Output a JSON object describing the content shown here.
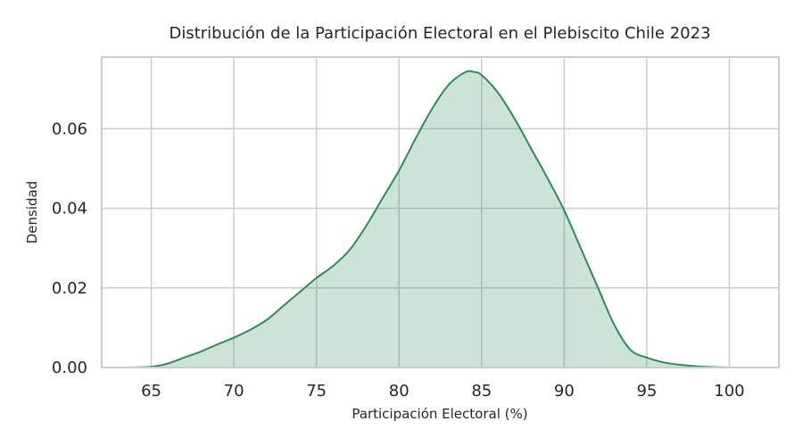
{
  "chart_data": {
    "type": "area",
    "title": "Distribución de la Participación Electoral en el Plebiscito Chile 2023",
    "xlabel": "Participación Electoral (%)",
    "ylabel": "Densidad",
    "xlim": [
      62,
      103
    ],
    "ylim": [
      0,
      0.078
    ],
    "xticks": [
      65,
      70,
      75,
      80,
      85,
      90,
      95,
      100
    ],
    "yticks": [
      0.0,
      0.02,
      0.04,
      0.06
    ],
    "ytick_labels": [
      "0.00",
      "0.02",
      "0.04",
      "0.06"
    ],
    "grid": true,
    "line_color": "#2e8b57",
    "fill_color": "#2e8b57",
    "fill_opacity": 0.24,
    "series": [
      {
        "x": [
          63.5,
          65,
          66,
          67,
          68,
          69,
          70,
          71,
          72,
          73,
          74,
          75,
          76,
          77,
          78,
          79,
          80,
          81,
          82,
          83,
          84,
          84.5,
          85,
          86,
          87,
          88,
          89,
          90,
          91,
          92,
          93,
          94,
          95,
          96,
          97,
          98,
          99,
          100,
          101
        ],
        "y": [
          0.0,
          0.0002,
          0.001,
          0.0025,
          0.004,
          0.0058,
          0.0075,
          0.0095,
          0.012,
          0.0155,
          0.019,
          0.0225,
          0.0255,
          0.0295,
          0.0355,
          0.0425,
          0.0495,
          0.0575,
          0.065,
          0.071,
          0.0742,
          0.0743,
          0.0735,
          0.069,
          0.0625,
          0.055,
          0.0475,
          0.0395,
          0.03,
          0.0205,
          0.011,
          0.0045,
          0.0025,
          0.0013,
          0.0007,
          0.0003,
          0.0001,
          0.0,
          0.0
        ]
      }
    ]
  }
}
